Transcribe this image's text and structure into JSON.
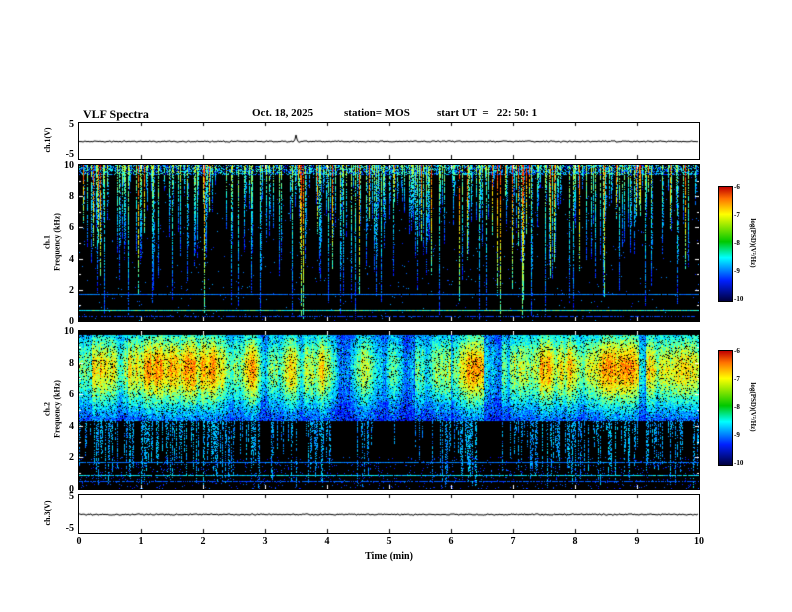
{
  "header": {
    "title": "VLF Spectra",
    "date": "Oct. 18, 2025",
    "station": "station= MOS",
    "start_ut": "start UT  =   22: 50: 1"
  },
  "left_labels": {
    "wave1": "ch.1(V)",
    "spec1_ch": "ch.1",
    "spec1_axis": "Frequency (kHz)",
    "spec2_ch": "ch.2",
    "spec2_axis": "Frequency (kHz)",
    "wave3": "ch.3(V)"
  },
  "axes": {
    "wave_y_ticks": [
      "5",
      "-5"
    ],
    "spec_y_ticks": [
      "10",
      "8",
      "6",
      "4",
      "2",
      "0"
    ],
    "x_ticks": [
      "0",
      "1",
      "2",
      "3",
      "4",
      "5",
      "6",
      "7",
      "8",
      "9",
      "10"
    ],
    "x_label": "Time (min)"
  },
  "colorbar": {
    "ticks": [
      "-6",
      "-7",
      "-8",
      "-9",
      "-10"
    ],
    "label": "log(PSD)(V²/Hz)",
    "gradient": [
      "#c00000",
      "#ff7000",
      "#ffff00",
      "#00c800",
      "#00ffff",
      "#0020ff",
      "#000040"
    ]
  },
  "chart_data": [
    {
      "type": "line",
      "name": "ch.1 voltage",
      "ylabel": "ch.1(V)",
      "ylim": [
        -5,
        5
      ],
      "xlim": [
        0,
        10
      ],
      "summary": "Nearly flat trace at ~0 V for the full 10 minutes with one tiny impulse near 3.5 min"
    },
    {
      "type": "heatmap",
      "name": "ch.1 spectrogram",
      "xlabel": "Time (min)",
      "ylabel": "Frequency (kHz)",
      "xlim": [
        0,
        10
      ],
      "ylim": [
        0,
        10
      ],
      "zlabel": "log(PSD)(V²/Hz)",
      "zlim": [
        -10,
        -6
      ],
      "features": [
        "many impulsive vertical streaks (sferics) descending from 10 kHz; most fade out between 7 and 3 kHz, some reach 0 kHz",
        "speckled band of weak blue-green emission just below 10 kHz across the whole record",
        "continuous narrowband line near 1.7 kHz at about -9",
        "brighter continuous narrowband line near 0.7 kHz at about -8",
        "background level near -10 (black)"
      ]
    },
    {
      "type": "heatmap",
      "name": "ch.2 spectrogram",
      "xlabel": "Time (min)",
      "ylabel": "Frequency (kHz)",
      "xlim": [
        0,
        10
      ],
      "ylim": [
        0,
        10
      ],
      "zlabel": "log(PSD)(V²/Hz)",
      "zlim": [
        -10,
        -6
      ],
      "features": [
        "dense broadband emission band from about 4.5 to 9.7 kHz, intensity mostly -9 to -7 with bright green cores",
        "vertical streaks extending below the band toward 0-3 kHz",
        "narrowband lines near 1.7, 0.9 and 0.5 kHz",
        "weak blue speckle below 2 kHz; background near -10 (black)"
      ]
    },
    {
      "type": "line",
      "name": "ch.3 voltage",
      "ylabel": "ch.3(V)",
      "ylim": [
        -5,
        5
      ],
      "xlim": [
        0,
        10
      ],
      "summary": "Nearly flat noisy trace at ~0 V for the full 10 minutes"
    }
  ]
}
